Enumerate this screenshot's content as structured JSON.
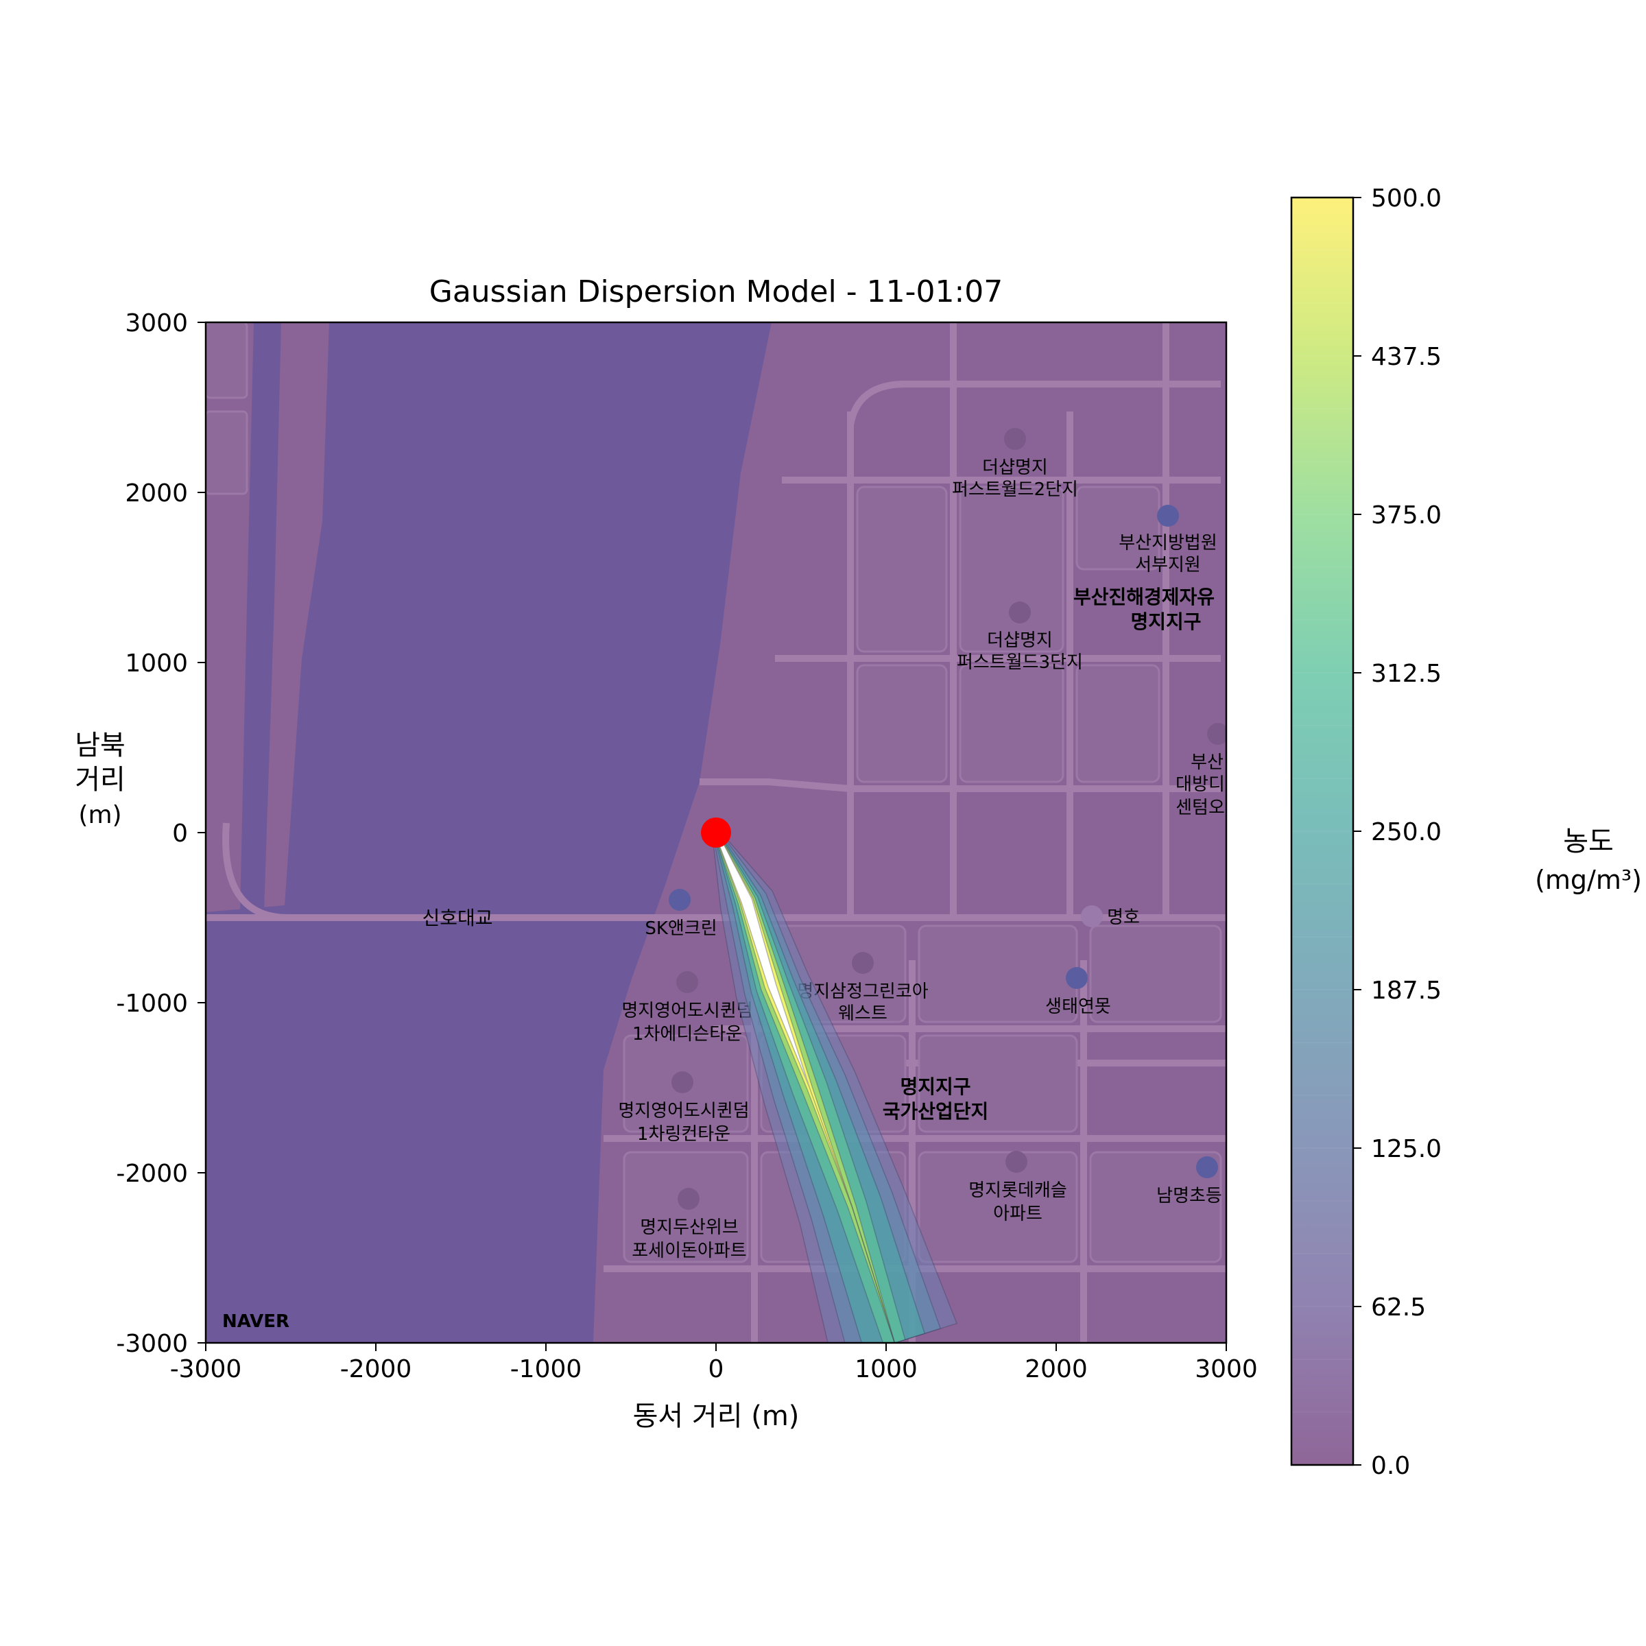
{
  "chart_data": {
    "type": "heatmap",
    "title": "Gaussian Dispersion Model - 11-01:07",
    "xlabel": "동서 거리 (m)",
    "ylabel": [
      "남북",
      "거리",
      "(m)"
    ],
    "xlim": [
      -3000,
      3000
    ],
    "ylim": [
      -3000,
      3000
    ],
    "x_ticks": [
      -3000,
      -2000,
      -1000,
      0,
      1000,
      2000,
      3000
    ],
    "y_ticks": [
      -3000,
      -2000,
      -1000,
      0,
      1000,
      2000,
      3000
    ],
    "x_tick_labels": [
      "-3000",
      "-2000",
      "-1000",
      "0",
      "1000",
      "2000",
      "3000"
    ],
    "y_tick_labels": [
      "-3000",
      "-2000",
      "-1000",
      "0",
      "1000",
      "2000",
      "3000"
    ],
    "grid": false,
    "source": {
      "x": 0,
      "y": 0,
      "color": "#ff0000"
    },
    "plume": {
      "direction": "south-southeast",
      "axis": [
        [
          0,
          0
        ],
        [
          180,
          -400
        ],
        [
          330,
          -900
        ],
        [
          550,
          -1500
        ],
        [
          800,
          -2200
        ],
        [
          1050,
          -3000
        ]
      ],
      "peak_concentration": 500,
      "note_levels": [
        0,
        62.5,
        125,
        187.5,
        250,
        312.5,
        375,
        437.5,
        500
      ]
    },
    "colorbar": {
      "label": [
        "농도",
        "(mg/m³)"
      ],
      "min": 0,
      "max": 500,
      "ticks": [
        "0.0",
        "62.5",
        "125.0",
        "187.5",
        "250.0",
        "312.5",
        "375.0",
        "437.5",
        "500.0"
      ],
      "colormap": "viridis",
      "alpha": 0.6
    },
    "basemap": {
      "river_color": "#6e5a9b",
      "land_color": "#8a6496",
      "road_color": "#a680ad",
      "labels": [
        "더샵명지",
        "퍼스트월드2단지",
        "부산지방법원",
        "서부지원",
        "부산진해경제자유",
        "명지지구",
        "더샵명지",
        "퍼스트월드3단지",
        "부산",
        "대방디",
        "센텀오",
        "신호대교",
        "SK앤크린",
        "명호",
        "명지영어도시퀸덤",
        "1차에디슨타운",
        "명지삼정그린코아",
        "웨스트",
        "생태연못",
        "명지영어도시퀸덤",
        "1차링컨타운",
        "명지지구",
        "국가산업단지",
        "명지롯데캐슬",
        "아파트",
        "남명초등",
        "명지두산위브",
        "포세이돈아파트",
        "NAVER"
      ]
    }
  }
}
